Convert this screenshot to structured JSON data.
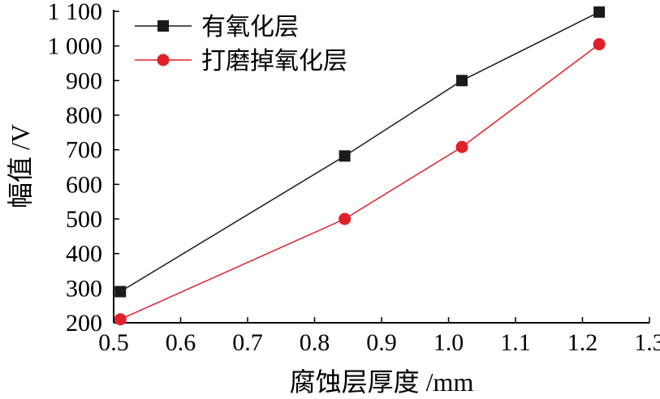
{
  "chart_data": {
    "type": "line",
    "xlabel": "腐蚀层厚度 /mm",
    "ylabel": "幅值 /V",
    "xlim": [
      0.5,
      1.3
    ],
    "ylim": [
      200,
      1100
    ],
    "x_ticks": [
      "0.5",
      "0.6",
      "0.7",
      "0.8",
      "0.9",
      "1.0",
      "1.1",
      "1.2",
      "1.3"
    ],
    "y_ticks": [
      "200",
      "300",
      "400",
      "500",
      "600",
      "700",
      "800",
      "900",
      "1 000",
      "1 100"
    ],
    "grid": false,
    "legend_position": "top-left",
    "series": [
      {
        "name": "有氧化层",
        "color": "#1a1a1a",
        "marker": "square",
        "x": [
          0.51,
          0.845,
          1.02,
          1.225
        ],
        "y": [
          290,
          682,
          900,
          1098
        ]
      },
      {
        "name": "打磨掉氧化层",
        "color": "#e0202a",
        "marker": "circle",
        "x": [
          0.51,
          0.845,
          1.02,
          1.225
        ],
        "y": [
          210,
          500,
          708,
          1005
        ]
      }
    ]
  }
}
